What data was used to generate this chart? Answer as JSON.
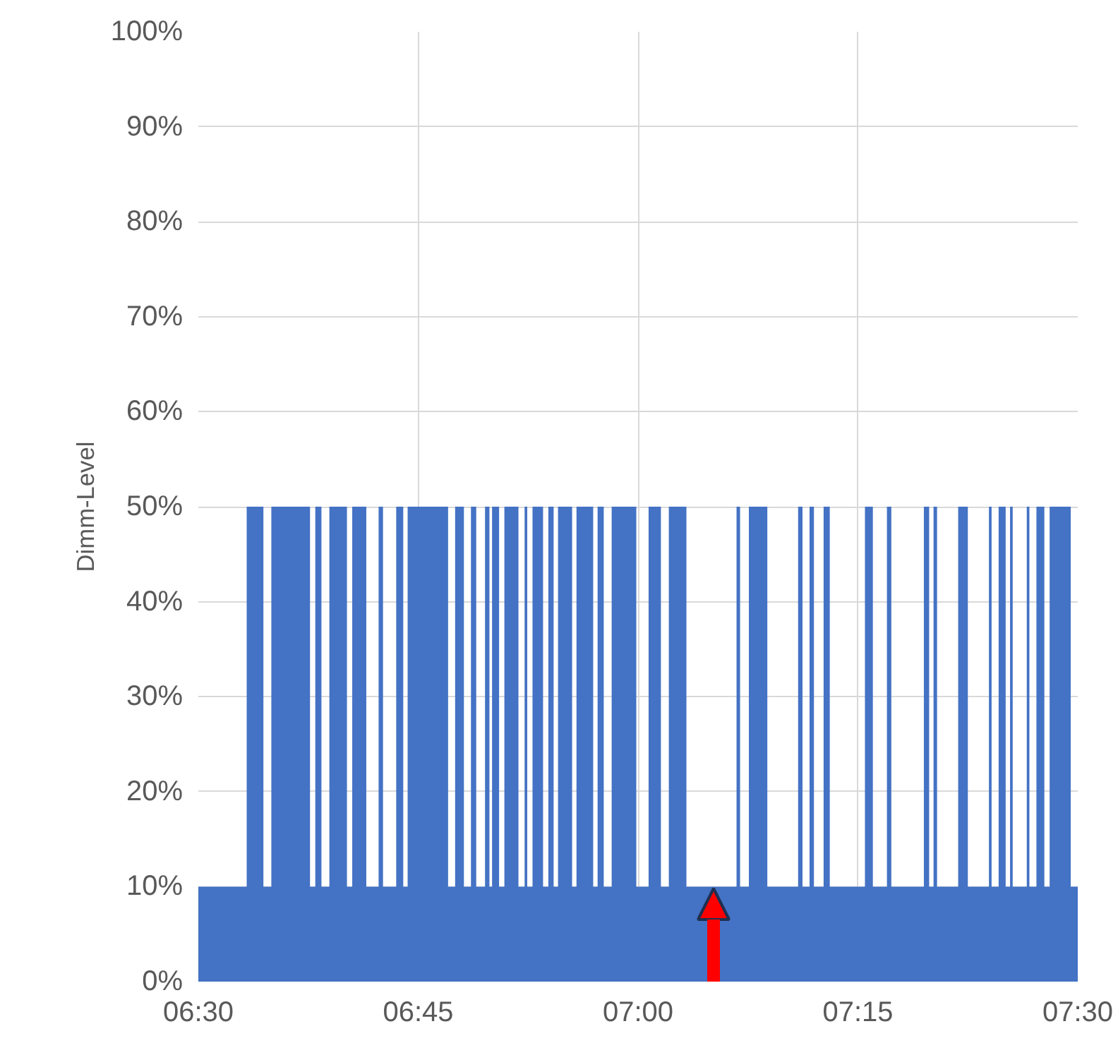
{
  "chart_data": {
    "type": "area",
    "ylabel": "Dimm-Level",
    "x": [
      6.5,
      6.555,
      6.555,
      6.574,
      6.574,
      6.583,
      6.583,
      6.627,
      6.627,
      6.633,
      6.633,
      6.64,
      6.64,
      6.649,
      6.649,
      6.669,
      6.669,
      6.675,
      6.675,
      6.691,
      6.691,
      6.705,
      6.705,
      6.71,
      6.71,
      6.725,
      6.725,
      6.733,
      6.733,
      6.738,
      6.738,
      6.784,
      6.784,
      6.792,
      6.792,
      6.802,
      6.802,
      6.81,
      6.81,
      6.816,
      6.816,
      6.826,
      6.826,
      6.831,
      6.831,
      6.834,
      6.834,
      6.842,
      6.842,
      6.848,
      6.848,
      6.864,
      6.864,
      6.871,
      6.871,
      6.874,
      6.874,
      6.88,
      6.88,
      6.892,
      6.892,
      6.898,
      6.898,
      6.904,
      6.904,
      6.909,
      6.909,
      6.925,
      6.925,
      6.93,
      6.93,
      6.949,
      6.949,
      6.954,
      6.954,
      6.961,
      6.961,
      6.97,
      6.97,
      6.998,
      6.998,
      7.012,
      7.012,
      7.026,
      7.026,
      7.035,
      7.035,
      7.055,
      7.055,
      7.112,
      7.112,
      7.116,
      7.116,
      7.126,
      7.126,
      7.147,
      7.147,
      7.182,
      7.182,
      7.187,
      7.187,
      7.195,
      7.195,
      7.2,
      7.2,
      7.211,
      7.211,
      7.218,
      7.218,
      7.258,
      7.258,
      7.267,
      7.267,
      7.283,
      7.283,
      7.288,
      7.288,
      7.325,
      7.325,
      7.331,
      7.331,
      7.336,
      7.336,
      7.34,
      7.34,
      7.364,
      7.364,
      7.375,
      7.375,
      7.399,
      7.399,
      7.402,
      7.402,
      7.41,
      7.41,
      7.418,
      7.418,
      7.423,
      7.423,
      7.426,
      7.426,
      7.442,
      7.442,
      7.445,
      7.445,
      7.453,
      7.453,
      7.462,
      7.462,
      7.468,
      7.468,
      7.492,
      7.492,
      7.5
    ],
    "values": [
      10,
      10,
      50,
      50,
      10,
      10,
      50,
      50,
      10,
      10,
      50,
      50,
      10,
      10,
      50,
      50,
      10,
      10,
      50,
      50,
      10,
      10,
      50,
      50,
      10,
      10,
      50,
      50,
      10,
      10,
      50,
      50,
      10,
      10,
      50,
      50,
      10,
      10,
      50,
      50,
      10,
      10,
      50,
      50,
      10,
      10,
      50,
      50,
      10,
      10,
      50,
      50,
      10,
      10,
      50,
      50,
      10,
      10,
      50,
      50,
      10,
      10,
      50,
      50,
      10,
      10,
      50,
      50,
      10,
      10,
      50,
      50,
      10,
      10,
      50,
      50,
      10,
      10,
      50,
      50,
      10,
      10,
      50,
      50,
      10,
      10,
      50,
      50,
      10,
      10,
      50,
      50,
      10,
      10,
      50,
      50,
      10,
      10,
      50,
      50,
      10,
      10,
      50,
      50,
      10,
      10,
      50,
      50,
      10,
      10,
      50,
      50,
      10,
      10,
      50,
      50,
      10,
      10,
      50,
      50,
      10,
      10,
      50,
      50,
      10,
      10,
      50,
      50,
      10,
      10,
      50,
      50,
      10,
      10,
      50,
      50,
      10,
      10,
      50,
      50,
      10,
      10,
      50,
      50,
      10,
      10,
      50,
      50,
      10,
      10,
      50,
      50,
      10,
      10
    ],
    "color": "#4472c4",
    "xlim": [
      6.5,
      7.5
    ],
    "xticks": [
      {
        "value": 6.5,
        "label": "06:30"
      },
      {
        "value": 6.75,
        "label": "06:45"
      },
      {
        "value": 7.0,
        "label": "07:00"
      },
      {
        "value": 7.25,
        "label": "07:15"
      },
      {
        "value": 7.5,
        "label": "07:30"
      }
    ],
    "ylim": [
      0,
      100
    ],
    "yticks": [
      {
        "value": 0,
        "label": "0%"
      },
      {
        "value": 10,
        "label": "10%"
      },
      {
        "value": 20,
        "label": "20%"
      },
      {
        "value": 30,
        "label": "30%"
      },
      {
        "value": 40,
        "label": "40%"
      },
      {
        "value": 50,
        "label": "50%"
      },
      {
        "value": 60,
        "label": "60%"
      },
      {
        "value": 70,
        "label": "70%"
      },
      {
        "value": 80,
        "label": "80%"
      },
      {
        "value": 90,
        "label": "90%"
      },
      {
        "value": 100,
        "label": "100%"
      }
    ],
    "grid": true
  }
}
